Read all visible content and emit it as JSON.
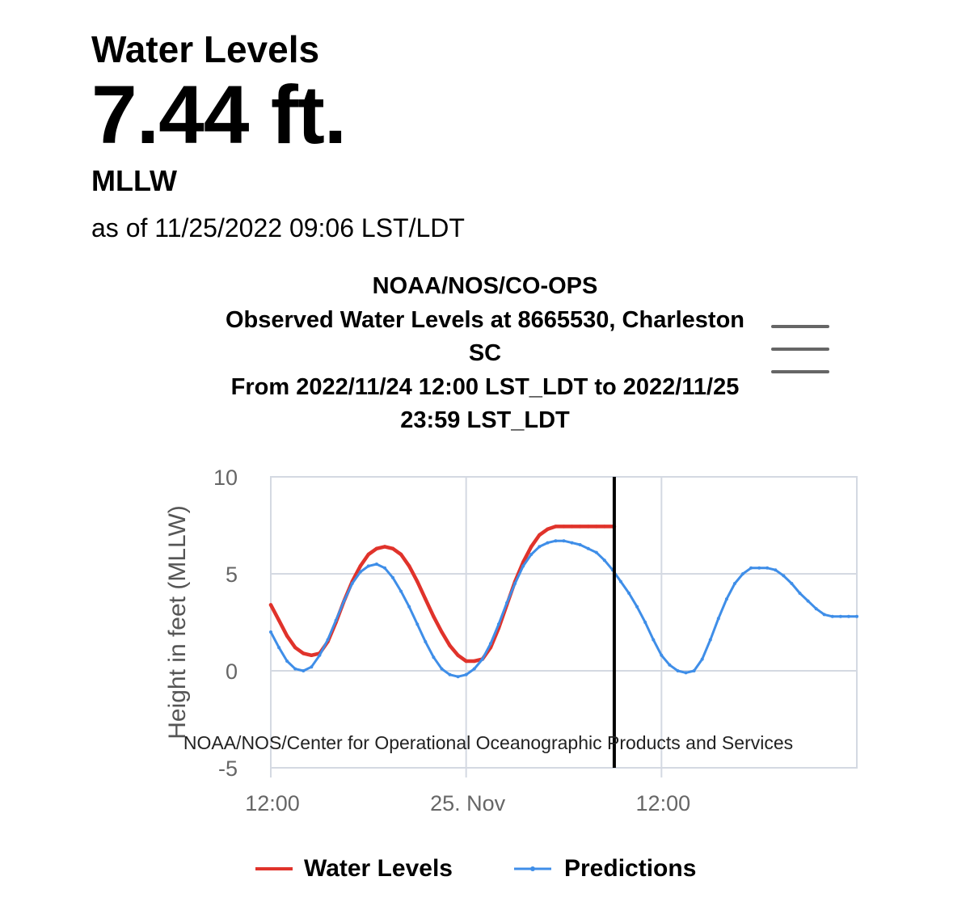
{
  "header": {
    "title": "Water Levels",
    "value": "7.44 ft.",
    "datum": "MLLW",
    "as_of": "as of 11/25/2022 09:06 LST/LDT"
  },
  "chart": {
    "title_lines": [
      "NOAA/NOS/CO-OPS",
      "Observed Water Levels at 8665530, Charleston",
      "SC",
      "From 2022/11/24 12:00 LST_LDT to 2022/11/25",
      "23:59 LST_LDT"
    ],
    "credit": "NOAA/NOS/Center for Operational Oceanographic Products and Services",
    "menu_icon": "hamburger-menu-icon"
  },
  "colors": {
    "water_levels": "#e0332b",
    "predictions": "#3f8ee8",
    "grid": "#d4d9e2",
    "current_time_marker": "#000000"
  },
  "chart_data": {
    "type": "line",
    "title": "NOAA/NOS/CO-OPS Observed Water Levels at 8665530, Charleston SC From 2022/11/24 12:00 LST_LDT to 2022/11/25 23:59 LST_LDT",
    "xlabel": "",
    "ylabel": "Height in feet (MLLW)",
    "x_unit": "hours since 2022/11/24 00:00",
    "xlim": [
      12,
      48
    ],
    "ylim": [
      -5,
      10
    ],
    "x_ticks": [
      {
        "x": 12,
        "label": "12:00"
      },
      {
        "x": 24,
        "label": "25. Nov"
      },
      {
        "x": 36,
        "label": "12:00"
      }
    ],
    "y_ticks": [
      -5,
      0,
      5,
      10
    ],
    "grid": true,
    "legend_position": "bottom",
    "current_time_x": 33.1,
    "series": [
      {
        "name": "Water Levels",
        "color": "#e0332b",
        "x": [
          12,
          12.5,
          13,
          13.5,
          14,
          14.5,
          15,
          15.5,
          16,
          16.5,
          17,
          17.5,
          18,
          18.5,
          19,
          19.5,
          20,
          20.5,
          21,
          21.5,
          22,
          22.5,
          23,
          23.5,
          24,
          24.5,
          25,
          25.5,
          26,
          26.5,
          27,
          27.5,
          28,
          28.5,
          29,
          29.5,
          30,
          30.5,
          31,
          31.5,
          32,
          32.5,
          33.1
        ],
        "y": [
          3.4,
          2.6,
          1.8,
          1.2,
          0.9,
          0.8,
          0.9,
          1.5,
          2.5,
          3.6,
          4.6,
          5.4,
          6.0,
          6.3,
          6.4,
          6.3,
          6.0,
          5.4,
          4.6,
          3.7,
          2.8,
          2.0,
          1.3,
          0.8,
          0.5,
          0.5,
          0.6,
          1.2,
          2.2,
          3.4,
          4.6,
          5.6,
          6.4,
          7.0,
          7.3,
          7.44,
          7.44,
          7.44,
          7.44,
          7.44,
          7.44,
          7.44,
          7.44
        ]
      },
      {
        "name": "Predictions",
        "color": "#3f8ee8",
        "x": [
          12,
          12.5,
          13,
          13.5,
          14,
          14.5,
          15,
          15.5,
          16,
          16.5,
          17,
          17.5,
          18,
          18.5,
          19,
          19.5,
          20,
          20.5,
          21,
          21.5,
          22,
          22.5,
          23,
          23.5,
          24,
          24.5,
          25,
          25.5,
          26,
          26.5,
          27,
          27.5,
          28,
          28.5,
          29,
          29.5,
          30,
          30.5,
          31,
          31.5,
          32,
          32.5,
          33,
          33.5,
          34,
          34.5,
          35,
          35.5,
          36,
          36.5,
          37,
          37.5,
          38,
          38.5,
          39,
          39.5,
          40,
          40.5,
          41,
          41.5,
          42,
          42.5,
          43,
          43.5,
          44,
          44.5,
          45,
          45.5,
          46,
          46.5,
          47,
          47.5,
          48
        ],
        "y": [
          2.0,
          1.2,
          0.5,
          0.1,
          0.0,
          0.2,
          0.8,
          1.6,
          2.6,
          3.6,
          4.5,
          5.1,
          5.4,
          5.5,
          5.3,
          4.8,
          4.1,
          3.3,
          2.4,
          1.5,
          0.7,
          0.1,
          -0.2,
          -0.3,
          -0.2,
          0.1,
          0.6,
          1.4,
          2.4,
          3.5,
          4.5,
          5.4,
          6.0,
          6.4,
          6.6,
          6.7,
          6.7,
          6.6,
          6.5,
          6.3,
          6.1,
          5.7,
          5.2,
          4.6,
          4.0,
          3.3,
          2.5,
          1.6,
          0.8,
          0.3,
          0.0,
          -0.1,
          0.0,
          0.6,
          1.6,
          2.7,
          3.7,
          4.5,
          5.0,
          5.3,
          5.3,
          5.3,
          5.2,
          4.9,
          4.5,
          4.0,
          3.6,
          3.2,
          2.9,
          2.8,
          2.8,
          2.8,
          2.8
        ]
      }
    ]
  }
}
